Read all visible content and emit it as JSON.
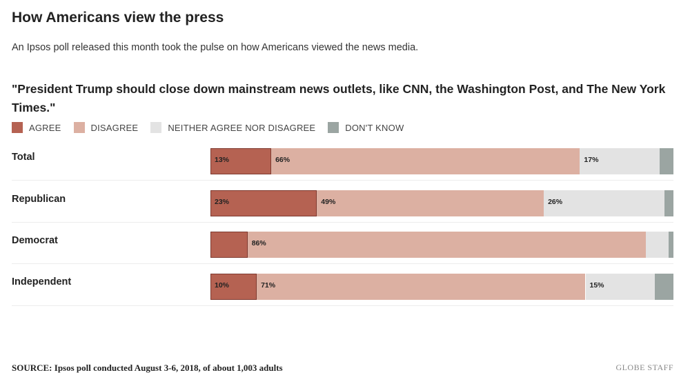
{
  "header": {
    "title": "How Americans view the press",
    "subtitle": "An Ipsos poll released this month took the pulse on how Americans viewed the news media."
  },
  "question": "\"President Trump should close down mainstream news outlets, like CNN, the Washington Post, and The New York Times.\"",
  "legend": [
    {
      "key": "agree",
      "label": "AGREE",
      "color": "#b56252"
    },
    {
      "key": "disagree",
      "label": "DISAGREE",
      "color": "#dcb0a2"
    },
    {
      "key": "neither",
      "label": "NEITHER AGREE NOR DISAGREE",
      "color": "#e3e3e3"
    },
    {
      "key": "dont_know",
      "label": "DON'T KNOW",
      "color": "#9ba5a2"
    }
  ],
  "chart_data": {
    "type": "bar",
    "orientation": "horizontal",
    "stacked": true,
    "title": "\"President Trump should close down mainstream news outlets, like CNN, the Washington Post, and The New York Times.\"",
    "categories": [
      "Total",
      "Republican",
      "Democrat",
      "Independent"
    ],
    "series": [
      {
        "name": "AGREE",
        "key": "agree",
        "values": [
          13,
          23,
          8,
          10
        ],
        "labels": [
          "13%",
          "23%",
          "",
          "10%"
        ]
      },
      {
        "name": "DISAGREE",
        "key": "disagree",
        "values": [
          66,
          49,
          86,
          71
        ],
        "labels": [
          "66%",
          "49%",
          "86%",
          "71%"
        ]
      },
      {
        "name": "NEITHER AGREE NOR DISAGREE",
        "key": "neither",
        "values": [
          17,
          26,
          5,
          15
        ],
        "labels": [
          "17%",
          "26%",
          "",
          "15%"
        ]
      },
      {
        "name": "DON'T KNOW",
        "key": "dont_know",
        "values": [
          3,
          2,
          1,
          4
        ],
        "labels": [
          "",
          "",
          "",
          ""
        ]
      }
    ],
    "xlim": [
      0,
      100
    ],
    "grid": false,
    "legend_position": "top-left"
  },
  "footer": {
    "source": "SOURCE: Ipsos poll conducted August 3-6, 2018, of about 1,003 adults",
    "credit": "GLOBE STAFF"
  }
}
